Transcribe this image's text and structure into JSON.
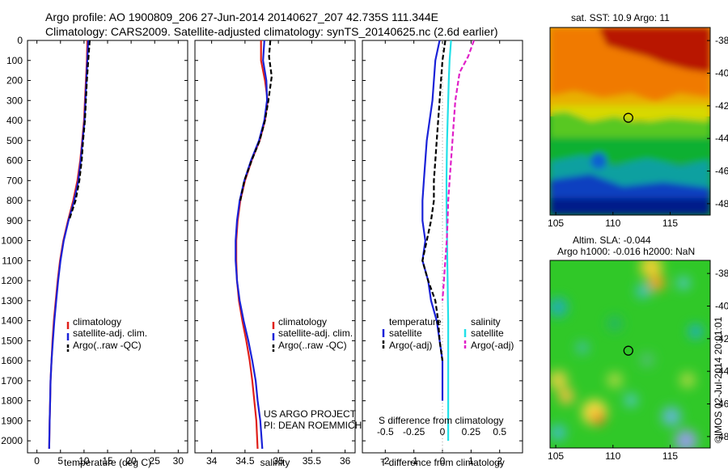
{
  "header": {
    "line1": "Argo profile: AO 1900809_206 27-Jun-2014 20140627_207 42.735S 111.344E",
    "line2": "Climatology: CARS2009. Satellite-adjusted climatology: synTS_20140625.nc (2.6d earlier)"
  },
  "depth_ticks": [
    0,
    100,
    200,
    300,
    400,
    500,
    600,
    700,
    800,
    900,
    1000,
    1100,
    1200,
    1300,
    1400,
    1500,
    1600,
    1700,
    1800,
    1900,
    2000
  ],
  "colors": {
    "climatology": "#e0201a",
    "satellite": "#1a22d8",
    "argo": "#000000",
    "sal_satellite": "#22e0e8",
    "sal_argo": "#e020c8"
  },
  "chart_data": [
    {
      "type": "line",
      "xlabel": "temperature (deg C)",
      "xticks": [
        "0",
        "5",
        "10",
        "15",
        "20",
        "25",
        "30"
      ],
      "xlim": [
        -2,
        32
      ],
      "ylim": [
        0,
        2060
      ],
      "legend": [
        "climatology",
        "satellite-adj. clim.",
        "Argo(..raw -QC)"
      ],
      "series": [
        {
          "name": "climatology",
          "style": "solid",
          "color": "#e0201a",
          "x": [
            10.7,
            10.6,
            10.4,
            10.2,
            10.0,
            9.6,
            9.2,
            8.6,
            7.7,
            6.6,
            5.6,
            4.9,
            4.4,
            4.0,
            3.6,
            3.3,
            3.1,
            2.9,
            2.8,
            2.7,
            2.6
          ],
          "y": [
            0,
            100,
            200,
            300,
            400,
            500,
            600,
            700,
            800,
            900,
            1000,
            1100,
            1200,
            1300,
            1400,
            1500,
            1600,
            1700,
            1800,
            1900,
            2040
          ]
        },
        {
          "name": "satellite-adj. clim.",
          "style": "solid",
          "color": "#1a22d8",
          "x": [
            10.9,
            10.7,
            10.5,
            10.3,
            10.1,
            9.7,
            9.3,
            8.8,
            7.9,
            6.7,
            5.7,
            5.0,
            4.5,
            4.1,
            3.7,
            3.4,
            3.1,
            2.9,
            2.8,
            2.7,
            2.6
          ],
          "y": [
            0,
            100,
            200,
            300,
            400,
            500,
            600,
            700,
            800,
            900,
            1000,
            1100,
            1200,
            1300,
            1400,
            1500,
            1600,
            1700,
            1800,
            1900,
            2040
          ]
        },
        {
          "name": "Argo(..raw -QC)",
          "style": "dashed",
          "color": "#000000",
          "x": [
            11.2,
            10.9,
            10.6,
            10.4,
            10.2,
            9.8,
            9.5,
            9.0,
            8.2,
            6.8
          ],
          "y": [
            0,
            100,
            200,
            300,
            400,
            500,
            600,
            700,
            800,
            900
          ]
        }
      ]
    },
    {
      "type": "line",
      "xlabel": "salinity",
      "xticks": [
        "34",
        "34.5",
        "35",
        "35.5",
        "36"
      ],
      "xlim": [
        33.75,
        36.15
      ],
      "ylim": [
        0,
        2060
      ],
      "legend": [
        "climatology",
        "satellite-adj. clim.",
        "Argo(..raw -QC)"
      ],
      "annotation": [
        "US ARGO PROJECT",
        "PI: DEAN ROEMMICH"
      ],
      "series": [
        {
          "name": "climatology",
          "style": "solid",
          "color": "#e0201a",
          "x": [
            34.74,
            34.74,
            34.8,
            34.84,
            34.8,
            34.72,
            34.6,
            34.5,
            34.43,
            34.39,
            34.37,
            34.37,
            34.38,
            34.41,
            34.46,
            34.52,
            34.57,
            34.61,
            34.64,
            34.67,
            34.69
          ],
          "y": [
            0,
            100,
            200,
            300,
            400,
            500,
            600,
            700,
            800,
            900,
            1000,
            1100,
            1200,
            1300,
            1400,
            1500,
            1600,
            1700,
            1800,
            1900,
            2040
          ]
        },
        {
          "name": "satellite-adj. clim.",
          "style": "solid",
          "color": "#1a22d8",
          "x": [
            34.79,
            34.77,
            34.82,
            34.83,
            34.79,
            34.71,
            34.59,
            34.49,
            34.42,
            34.38,
            34.36,
            34.36,
            34.38,
            34.42,
            34.48,
            34.55,
            34.61,
            34.66,
            34.69,
            34.73,
            34.76
          ],
          "y": [
            0,
            100,
            200,
            300,
            400,
            500,
            600,
            700,
            800,
            900,
            1000,
            1100,
            1200,
            1300,
            1400,
            1500,
            1600,
            1700,
            1800,
            1900,
            2040
          ]
        },
        {
          "name": "Argo(..raw -QC)",
          "style": "dashed",
          "color": "#000000",
          "x": [
            34.88,
            34.86,
            34.9,
            34.85,
            34.8,
            34.72,
            34.6,
            34.49,
            34.43
          ],
          "y": [
            0,
            80,
            180,
            300,
            400,
            500,
            600,
            700,
            800
          ]
        }
      ]
    },
    {
      "type": "line",
      "xlabel": "T difference from climatology",
      "xticks": [
        "-2",
        "-1",
        "0",
        "1",
        "2"
      ],
      "xlim": [
        -2.8,
        2.8
      ],
      "ylim": [
        0,
        2060
      ],
      "secondary_xlabel": "S difference from climatology",
      "secondary_xticks": [
        "-0.5",
        "-0.25",
        "0",
        "0.25",
        "0.5"
      ],
      "legend_headers": [
        "temperature",
        "salinity"
      ],
      "legend": [
        "satellite",
        "Argo(-adj)",
        "satellite",
        "Argo(-adj)"
      ],
      "series": [
        {
          "name": "satellite",
          "group": "temperature",
          "style": "solid",
          "color": "#1a22d8",
          "x": [
            -0.1,
            -0.25,
            -0.3,
            -0.35,
            -0.45,
            -0.55,
            -0.6,
            -0.65,
            -0.7,
            -0.7,
            -0.6,
            -0.7,
            -0.5,
            -0.4,
            -0.2,
            -0.1,
            0.0,
            0.0,
            0.0
          ],
          "y": [
            0,
            100,
            200,
            300,
            400,
            500,
            600,
            700,
            800,
            900,
            1000,
            1100,
            1200,
            1300,
            1400,
            1500,
            1600,
            1700,
            1800
          ]
        },
        {
          "name": "Argo(-adj)",
          "group": "temperature",
          "style": "dashed",
          "color": "#000000",
          "x": [
            0.1,
            0.0,
            -0.05,
            -0.1,
            -0.15,
            -0.2,
            -0.25,
            -0.3,
            -0.3,
            -0.4,
            -0.55,
            -0.7,
            -0.5,
            -0.25,
            -0.15,
            -0.1,
            0.0
          ],
          "y": [
            0,
            100,
            200,
            300,
            400,
            500,
            600,
            700,
            800,
            900,
            1000,
            1100,
            1200,
            1300,
            1400,
            1500,
            1600
          ]
        },
        {
          "name": "satellite",
          "group": "salinity",
          "style": "solid",
          "color": "#22e0e8",
          "x": [
            0.3,
            0.25,
            0.22,
            0.2,
            0.18,
            0.16,
            0.15,
            0.14,
            0.14,
            0.15,
            0.16,
            0.17,
            0.18,
            0.19,
            0.2,
            0.2,
            0.2,
            0.2,
            0.2,
            0.2,
            0.2
          ],
          "y": [
            0,
            100,
            200,
            300,
            400,
            500,
            600,
            700,
            800,
            900,
            1000,
            1100,
            1200,
            1300,
            1400,
            1500,
            1600,
            1700,
            1800,
            1900,
            2000
          ]
        },
        {
          "name": "Argo(-adj)",
          "group": "salinity",
          "style": "dashed",
          "color": "#e020c8",
          "x": [
            1.1,
            0.9,
            0.6,
            0.45,
            0.4,
            0.35,
            0.3,
            0.25,
            0.2,
            0.18,
            0.15,
            0.1,
            0.05,
            0.0
          ],
          "y": [
            0,
            80,
            160,
            300,
            400,
            500,
            600,
            700,
            800,
            900,
            1000,
            1100,
            1200,
            1300
          ]
        }
      ]
    },
    {
      "type": "heatmap",
      "title": "sat. SST: 10.9 Argo: 11",
      "xticks": [
        "105",
        "110",
        "115"
      ],
      "yticks": [
        "-38",
        "-40",
        "-42",
        "-44",
        "-46",
        "-48"
      ],
      "xlim": [
        104.5,
        118.5
      ],
      "ylim": [
        -48.7,
        -37.2
      ],
      "marker": {
        "lon": 111.344,
        "lat": -42.735
      }
    },
    {
      "type": "heatmap",
      "title": "Altim. SLA: -0.044",
      "subtitle": "Argo h1000: -0.016 h2000: NaN",
      "xticks": [
        "105",
        "110",
        "115"
      ],
      "yticks": [
        "-38",
        "-40",
        "-42",
        "-44",
        "-46",
        "-48"
      ],
      "xlim": [
        104.5,
        118.5
      ],
      "ylim": [
        -48.7,
        -37.2
      ],
      "marker": {
        "lon": 111.344,
        "lat": -42.735
      }
    }
  ],
  "footer_stamp": "©IMOS 02-Jul-2014 20:01:01"
}
